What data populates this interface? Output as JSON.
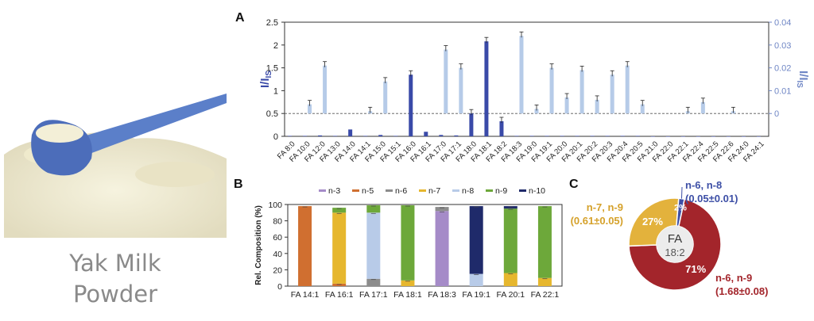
{
  "product": {
    "caption_line1": "Yak Milk",
    "caption_line2": "Powder"
  },
  "panels": {
    "a": "A",
    "b": "B",
    "c": "C"
  },
  "colors": {
    "dark_blue": "#3a4aa8",
    "light_blue": "#b6cbe8",
    "n3": "#a58bc8",
    "n5": "#d06f30",
    "n6": "#8c8c8c",
    "n7": "#e6b72e",
    "n8": "#b8cbe8",
    "n9": "#6da83a",
    "n10": "#1f2a6a",
    "donut_red": "#a3252b",
    "donut_yellow": "#e3b23c",
    "donut_blue": "#3d4fa6"
  },
  "chart_data": [
    {
      "type": "bar",
      "panel": "A",
      "categories": [
        "FA 8:0",
        "FA 10:0",
        "FA 12:0",
        "FA 13:0",
        "FA 14:0",
        "FA 14:1",
        "FA 15:0",
        "FA 15:1",
        "FA 16:0",
        "FA 16:1",
        "FA 17:0",
        "FA 17:1",
        "FA 18:0",
        "FA 18:1",
        "FA 18:2",
        "FA 18:3",
        "FA 19:0",
        "FA 19:1",
        "FA 20:0",
        "FA 20:1",
        "FA 20:2",
        "FA 20:3",
        "FA 20:4",
        "FA 20:5",
        "FA 21:0",
        "FA 22:0",
        "FA 22:1",
        "FA 22:4",
        "FA 22:5",
        "FA 22:6",
        "FA 24:0",
        "FA 24:1"
      ],
      "series": [
        {
          "axis": "left",
          "values": [
            0.01,
            0.01,
            0.02,
            0.01,
            0.15,
            0.01,
            0.03,
            0.01,
            1.35,
            0.1,
            0.03,
            0.02,
            0.5,
            2.08,
            0.33,
            0.01,
            0.01,
            0.01,
            0.01,
            0.01,
            0.01,
            0.01,
            0.01,
            0.01,
            0.0,
            0.0,
            0.0,
            0.0,
            0.0,
            0.0,
            0.0,
            0.0
          ]
        },
        {
          "axis": "right",
          "values": [
            0.0,
            0.004,
            0.021,
            0.0,
            0.0,
            0.001,
            0.014,
            0.0,
            0.0,
            0.0,
            0.028,
            0.02,
            0.0,
            0.0,
            0.0,
            0.034,
            0.002,
            0.02,
            0.007,
            0.019,
            0.006,
            0.017,
            0.021,
            0.004,
            0.0,
            0.0,
            0.001,
            0.005,
            0.0,
            0.001,
            0.0,
            0.0
          ]
        }
      ],
      "ylabel": "I/I",
      "ylabel_sub": "IS",
      "ylabel_right": "I/I",
      "ylabel_right_sub": "IS",
      "ylim": [
        0,
        2.5
      ],
      "ylim_right": [
        -0.01,
        0.04
      ],
      "yticks": [
        "0",
        "0.5",
        "1",
        "1.5",
        "2",
        "2.5"
      ],
      "yticks_right": [
        "0",
        "0.01",
        "0.02",
        "0.03",
        "0.04"
      ]
    },
    {
      "type": "bar",
      "panel": "B",
      "stacked": true,
      "categories": [
        "FA 14:1",
        "FA 16:1",
        "FA 17:1",
        "FA 18:1",
        "FA 18:3",
        "FA 19:1",
        "FA 20:1",
        "FA 22:1"
      ],
      "legend": [
        "n-3",
        "n-5",
        "n-6",
        "n-7",
        "n-8",
        "n-9",
        "n-10"
      ],
      "series": [
        {
          "name": "n-3",
          "values": [
            0,
            0,
            0,
            0,
            92,
            0,
            0,
            0
          ]
        },
        {
          "name": "n-5",
          "values": [
            98,
            3,
            0,
            0,
            0,
            0,
            0,
            0
          ]
        },
        {
          "name": "n-6",
          "values": [
            0,
            0,
            9,
            0,
            5,
            0,
            0,
            0
          ]
        },
        {
          "name": "n-7",
          "values": [
            0,
            87,
            0,
            7,
            0,
            0,
            16,
            10
          ]
        },
        {
          "name": "n-8",
          "values": [
            0,
            0,
            81,
            0,
            0,
            15,
            0,
            0
          ]
        },
        {
          "name": "n-9",
          "values": [
            0,
            6,
            9,
            92,
            0,
            0,
            79,
            88
          ]
        },
        {
          "name": "n-10",
          "values": [
            0,
            0,
            0,
            0,
            0,
            83,
            3,
            0
          ]
        }
      ],
      "ylabel": "Rel. Composition (%)",
      "ylim": [
        0,
        100
      ],
      "yticks": [
        "0",
        "20",
        "40",
        "60",
        "80",
        "100"
      ]
    },
    {
      "type": "pie",
      "panel": "C",
      "center_label_1": "FA",
      "center_label_2": "18:2",
      "slices": [
        {
          "label": "n-6, n-9",
          "value": 71,
          "pct_label": "71%",
          "ratio": "(1.68±0.08)"
        },
        {
          "label": "n-7, n-9",
          "value": 27,
          "pct_label": "27%",
          "ratio": "(0.61±0.05)"
        },
        {
          "label": "n-6, n-8",
          "value": 2,
          "pct_label": "2%",
          "ratio": "(0.05±0.01)"
        }
      ]
    }
  ]
}
